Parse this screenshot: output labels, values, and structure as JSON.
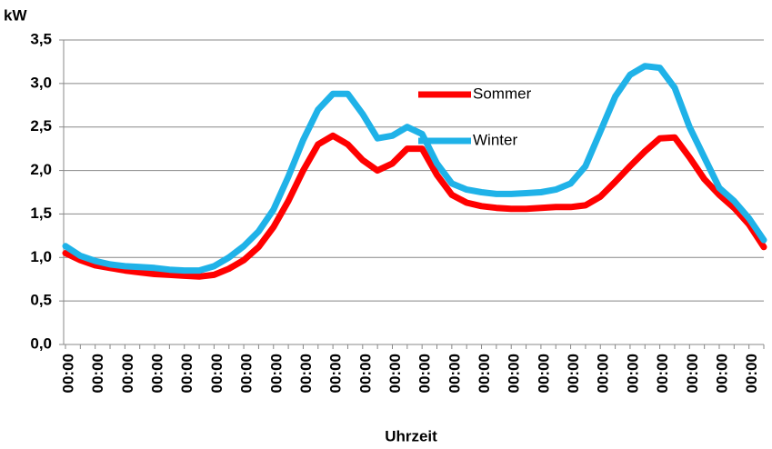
{
  "chart_data": {
    "type": "line",
    "y_label": "kW",
    "x_label": "Uhrzeit",
    "categories": [
      "00:00",
      null,
      "00:00",
      null,
      "00:00",
      null,
      "00:00",
      null,
      "00:00",
      null,
      "00:00",
      null,
      "00:00",
      null,
      "00:00",
      null,
      "00:00",
      null,
      "00:00",
      null,
      "00:00",
      null,
      "00:00",
      null,
      "00:00",
      null,
      "00:00",
      null,
      "00:00",
      null,
      "00:00",
      null,
      "00:00",
      null,
      "00:00",
      null,
      "00:00",
      null,
      "00:00",
      null,
      "00:00",
      null,
      "00:00",
      null,
      "00:00",
      null,
      "00:00",
      null
    ],
    "series": [
      {
        "name": "Sommer",
        "color": "#ff0000",
        "values": [
          1.05,
          0.97,
          0.91,
          0.88,
          0.85,
          0.83,
          0.81,
          0.8,
          0.79,
          0.78,
          0.8,
          0.87,
          0.97,
          1.12,
          1.35,
          1.65,
          2.0,
          2.3,
          2.4,
          2.3,
          2.12,
          2.0,
          2.08,
          2.25,
          2.25,
          1.95,
          1.72,
          1.63,
          1.59,
          1.57,
          1.56,
          1.56,
          1.57,
          1.58,
          1.58,
          1.6,
          1.7,
          1.87,
          2.05,
          2.22,
          2.37,
          2.38,
          2.15,
          1.9,
          1.72,
          1.57,
          1.38,
          1.12
        ]
      },
      {
        "name": "Winter",
        "color": "#1fb2e8",
        "values": [
          1.13,
          1.02,
          0.96,
          0.92,
          0.9,
          0.89,
          0.88,
          0.86,
          0.85,
          0.85,
          0.9,
          1.0,
          1.13,
          1.3,
          1.55,
          1.93,
          2.35,
          2.7,
          2.88,
          2.88,
          2.65,
          2.37,
          2.4,
          2.5,
          2.42,
          2.08,
          1.85,
          1.78,
          1.75,
          1.73,
          1.73,
          1.74,
          1.75,
          1.78,
          1.85,
          2.05,
          2.45,
          2.85,
          3.1,
          3.2,
          3.18,
          2.95,
          2.5,
          2.15,
          1.8,
          1.65,
          1.45,
          1.2
        ]
      }
    ],
    "ylim": [
      0,
      3.5
    ],
    "yticks": [
      {
        "value": 0,
        "label": "0,0"
      },
      {
        "value": 0.5,
        "label": "0,5"
      },
      {
        "value": 1,
        "label": "1,0"
      },
      {
        "value": 1.5,
        "label": "1,5"
      },
      {
        "value": 2,
        "label": "2,0"
      },
      {
        "value": 2.5,
        "label": "2,5"
      },
      {
        "value": 3,
        "label": "3,0"
      },
      {
        "value": 3.5,
        "label": "3,5"
      }
    ],
    "grid": true
  }
}
